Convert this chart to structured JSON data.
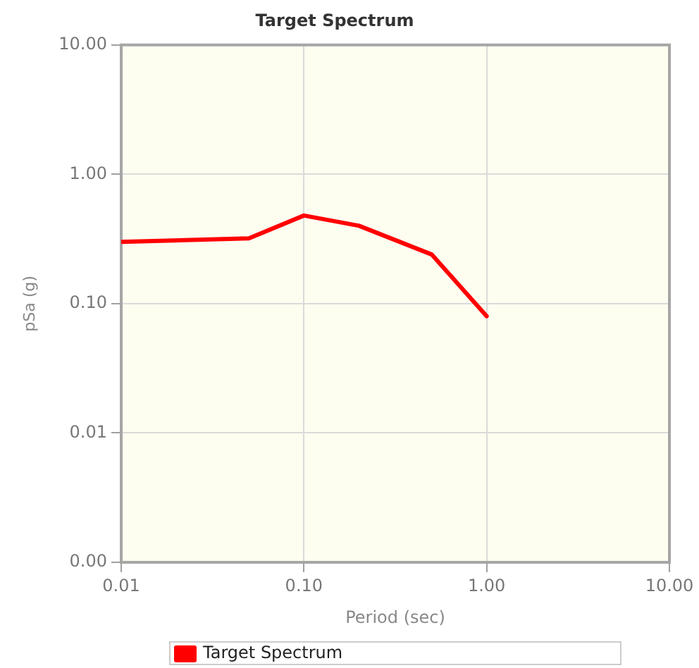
{
  "chart_data": {
    "type": "line",
    "title": "Target Spectrum",
    "xlabel": "Period (sec)",
    "ylabel": "pSa (g)",
    "x": [
      0.01,
      0.05,
      0.1,
      0.2,
      0.5,
      1.0
    ],
    "series": [
      {
        "name": "Target Spectrum",
        "color": "#ff0000",
        "values": [
          0.3,
          0.32,
          0.48,
          0.4,
          0.24,
          0.08
        ]
      }
    ],
    "log": "xy",
    "xlim": [
      0.01,
      10
    ],
    "ylim": [
      0.001,
      10
    ],
    "xticks": [
      0.01,
      {
        "value": 0.1,
        "label": "0.10"
      },
      {
        "value": 1,
        "label": "1.00"
      },
      {
        "value": 10,
        "label": "10.00"
      }
    ],
    "yticks": [
      {
        "value": 0.001,
        "label": "0.00"
      },
      0.01,
      {
        "value": 0.1,
        "label": "0.10"
      },
      {
        "value": 1,
        "label": "1.00"
      },
      {
        "value": 10,
        "label": "10.00"
      }
    ],
    "grid": true,
    "legend": "bottom",
    "marker": "none",
    "line_style": "solid"
  }
}
